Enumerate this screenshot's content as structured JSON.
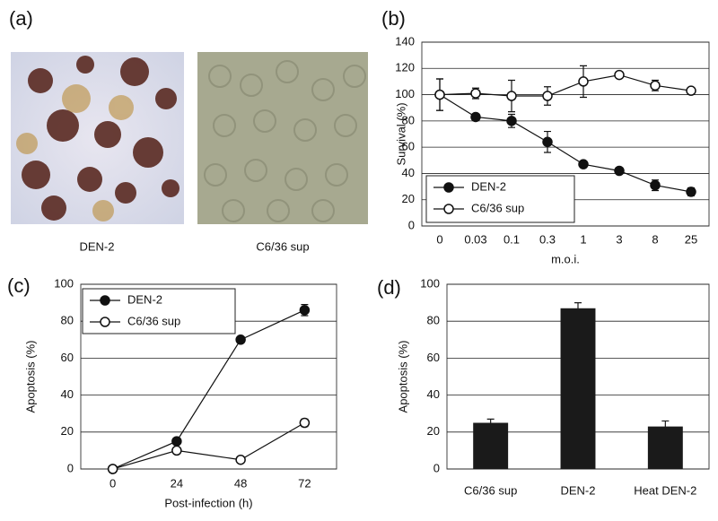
{
  "images": {
    "panel": "(a)",
    "captions": [
      "DEN-2",
      "C6/36 sup"
    ]
  },
  "chart_data": [
    {
      "type": "line",
      "panel": "(b)",
      "x_label": "m.o.i.",
      "y_label": "Survival (%)",
      "categories": [
        "0",
        "0.03",
        "0.1",
        "0.3",
        "1",
        "3",
        "8",
        "25"
      ],
      "series": [
        {
          "name": "DEN-2",
          "color": "#111111",
          "marker": "filled",
          "values": [
            100,
            83,
            80,
            64,
            47,
            42,
            31,
            26
          ],
          "errors": [
            12,
            2,
            5,
            8,
            1,
            1,
            4,
            3
          ]
        },
        {
          "name": "C6/36 sup",
          "color": "#111111",
          "marker": "open",
          "values": [
            100,
            101,
            99,
            99,
            110,
            115,
            107,
            103
          ],
          "errors": [
            12,
            4,
            12,
            7,
            12,
            1,
            4,
            2
          ]
        }
      ],
      "ylim": [
        0,
        140
      ],
      "yticks": [
        0,
        20,
        40,
        60,
        80,
        100,
        120,
        140
      ],
      "grid": true,
      "legend": "lower-left"
    },
    {
      "type": "line",
      "panel": "(c)",
      "x_label": "Post-infection (h)",
      "y_label": "Apoptosis (%)",
      "categories": [
        "0",
        "24",
        "48",
        "72"
      ],
      "series": [
        {
          "name": "DEN-2",
          "color": "#111111",
          "marker": "filled",
          "values": [
            0,
            15,
            70,
            86
          ],
          "errors": [
            0,
            0,
            1,
            3
          ]
        },
        {
          "name": "C6/36 sup",
          "color": "#111111",
          "marker": "open",
          "values": [
            0,
            10,
            5,
            25
          ],
          "errors": [
            0,
            0,
            0,
            2
          ]
        }
      ],
      "ylim": [
        0,
        100
      ],
      "yticks": [
        0,
        20,
        40,
        60,
        80,
        100
      ],
      "grid": true,
      "legend": "upper-left"
    },
    {
      "type": "bar",
      "panel": "(d)",
      "y_label": "Apoptosis (%)",
      "categories": [
        "C6/36 sup",
        "DEN-2",
        "Heat DEN-2"
      ],
      "values": [
        25,
        87,
        23
      ],
      "errors": [
        2,
        3,
        3
      ],
      "color": "#1a1a1a",
      "ylim": [
        0,
        100
      ],
      "yticks": [
        0,
        20,
        40,
        60,
        80,
        100
      ],
      "grid": true
    }
  ]
}
